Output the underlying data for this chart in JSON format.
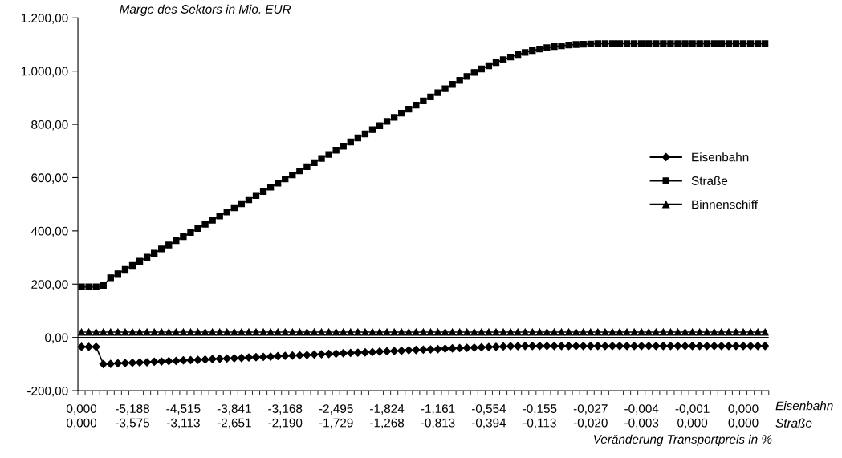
{
  "chart_data": {
    "type": "line",
    "ylabel": "Marge des Sektors in Mio. EUR",
    "xlabel": "Veränderung Transportpreis in %",
    "annotations": [
      "Eisenbahn",
      "Straße"
    ],
    "categories": [
      "0,000\n0,000",
      null,
      null,
      null,
      null,
      null,
      null,
      "-5,188\n-3,575",
      null,
      null,
      null,
      null,
      null,
      null,
      "-4,515\n-3,113",
      null,
      null,
      null,
      null,
      null,
      null,
      "-3,841\n-2,651",
      null,
      null,
      null,
      null,
      null,
      null,
      "-3,168\n-2,190",
      null,
      null,
      null,
      null,
      null,
      null,
      "-2,495\n-1,729",
      null,
      null,
      null,
      null,
      null,
      null,
      "-1,824\n-1,268",
      null,
      null,
      null,
      null,
      null,
      null,
      "-1,161\n-0,813",
      null,
      null,
      null,
      null,
      null,
      null,
      "-0,554\n-0,394",
      null,
      null,
      null,
      null,
      null,
      null,
      "-0,155\n-0,113",
      null,
      null,
      null,
      null,
      null,
      null,
      "-0,027\n-0,020",
      null,
      null,
      null,
      null,
      null,
      null,
      "-0,004\n-0,003",
      null,
      null,
      null,
      null,
      null,
      null,
      "-0,001\n0,000",
      null,
      null,
      null,
      null,
      null,
      null,
      "0,000\n0,000",
      null,
      null,
      null
    ],
    "series": [
      {
        "name": "Eisenbahn",
        "color": "#000000",
        "marker": "diamond",
        "values": [
          -35,
          -35,
          -35,
          -100,
          -99,
          -97,
          -96,
          -95,
          -94,
          -93,
          -91,
          -90,
          -89,
          -88,
          -86,
          -85,
          -84,
          -83,
          -81,
          -80,
          -79,
          -78,
          -77,
          -75,
          -74,
          -73,
          -72,
          -70,
          -69,
          -68,
          -67,
          -66,
          -64,
          -63,
          -62,
          -61,
          -59,
          -58,
          -57,
          -56,
          -55,
          -53,
          -52,
          -51,
          -50,
          -48,
          -47,
          -46,
          -45,
          -44,
          -42,
          -41,
          -40,
          -39,
          -38,
          -37,
          -36,
          -35,
          -34,
          -33,
          -33,
          -32,
          -32,
          -32,
          -32,
          -32,
          -32,
          -32,
          -32,
          -32,
          -32,
          -32,
          -32,
          -32,
          -32,
          -32,
          -32,
          -32,
          -32,
          -32,
          -32,
          -32,
          -32,
          -32,
          -32,
          -32,
          -32,
          -32,
          -32,
          -32,
          -32,
          -32,
          -32,
          -32,
          -32
        ]
      },
      {
        "name": "Straße",
        "color": "#000000",
        "marker": "square",
        "values": [
          190,
          190,
          190,
          195,
          224,
          239,
          255,
          270,
          286,
          301,
          316,
          332,
          347,
          363,
          378,
          394,
          409,
          425,
          440,
          456,
          471,
          487,
          502,
          517,
          533,
          548,
          564,
          579,
          595,
          610,
          625,
          641,
          656,
          672,
          687,
          703,
          718,
          734,
          749,
          764,
          780,
          795,
          811,
          826,
          842,
          857,
          872,
          888,
          903,
          919,
          934,
          950,
          965,
          980,
          995,
          1008,
          1020,
          1032,
          1043,
          1053,
          1062,
          1070,
          1077,
          1083,
          1088,
          1092,
          1095,
          1098,
          1100,
          1101,
          1102,
          1103,
          1103,
          1103,
          1103,
          1103,
          1103,
          1103,
          1103,
          1103,
          1103,
          1103,
          1103,
          1103,
          1103,
          1103,
          1103,
          1103,
          1103,
          1103,
          1103,
          1103,
          1103,
          1103,
          1103
        ]
      },
      {
        "name": "Binnenschiff",
        "color": "#000000",
        "marker": "triangle",
        "values": [
          20,
          20,
          20,
          20,
          20,
          20,
          20,
          20,
          20,
          20,
          20,
          20,
          20,
          20,
          20,
          20,
          20,
          20,
          20,
          20,
          20,
          20,
          20,
          20,
          20,
          20,
          20,
          20,
          20,
          20,
          20,
          20,
          20,
          20,
          20,
          20,
          20,
          20,
          20,
          20,
          20,
          20,
          20,
          20,
          20,
          20,
          20,
          20,
          20,
          20,
          20,
          20,
          20,
          20,
          20,
          20,
          20,
          20,
          20,
          20,
          20,
          20,
          20,
          20,
          20,
          20,
          20,
          20,
          20,
          20,
          20,
          20,
          20,
          20,
          20,
          20,
          20,
          20,
          20,
          20,
          20,
          20,
          20,
          20,
          20,
          20,
          20,
          20,
          20,
          20,
          20,
          20,
          20,
          20,
          20
        ]
      }
    ],
    "ylim": [
      -200,
      1200
    ],
    "yticks": [
      {
        "value": -200,
        "label": "-200,00"
      },
      {
        "value": 0,
        "label": "0,00"
      },
      {
        "value": 200,
        "label": "200,00"
      },
      {
        "value": 400,
        "label": "400,00"
      },
      {
        "value": 600,
        "label": "600,00"
      },
      {
        "value": 800,
        "label": "800,00"
      },
      {
        "value": 1000,
        "label": "1.000,00"
      },
      {
        "value": 1200,
        "label": "1.200,00"
      }
    ],
    "ref_lines": [
      {
        "axis": "y",
        "value": 0,
        "color": "#000000"
      }
    ],
    "grid": false,
    "legend": "right",
    "line_style": "solid"
  }
}
